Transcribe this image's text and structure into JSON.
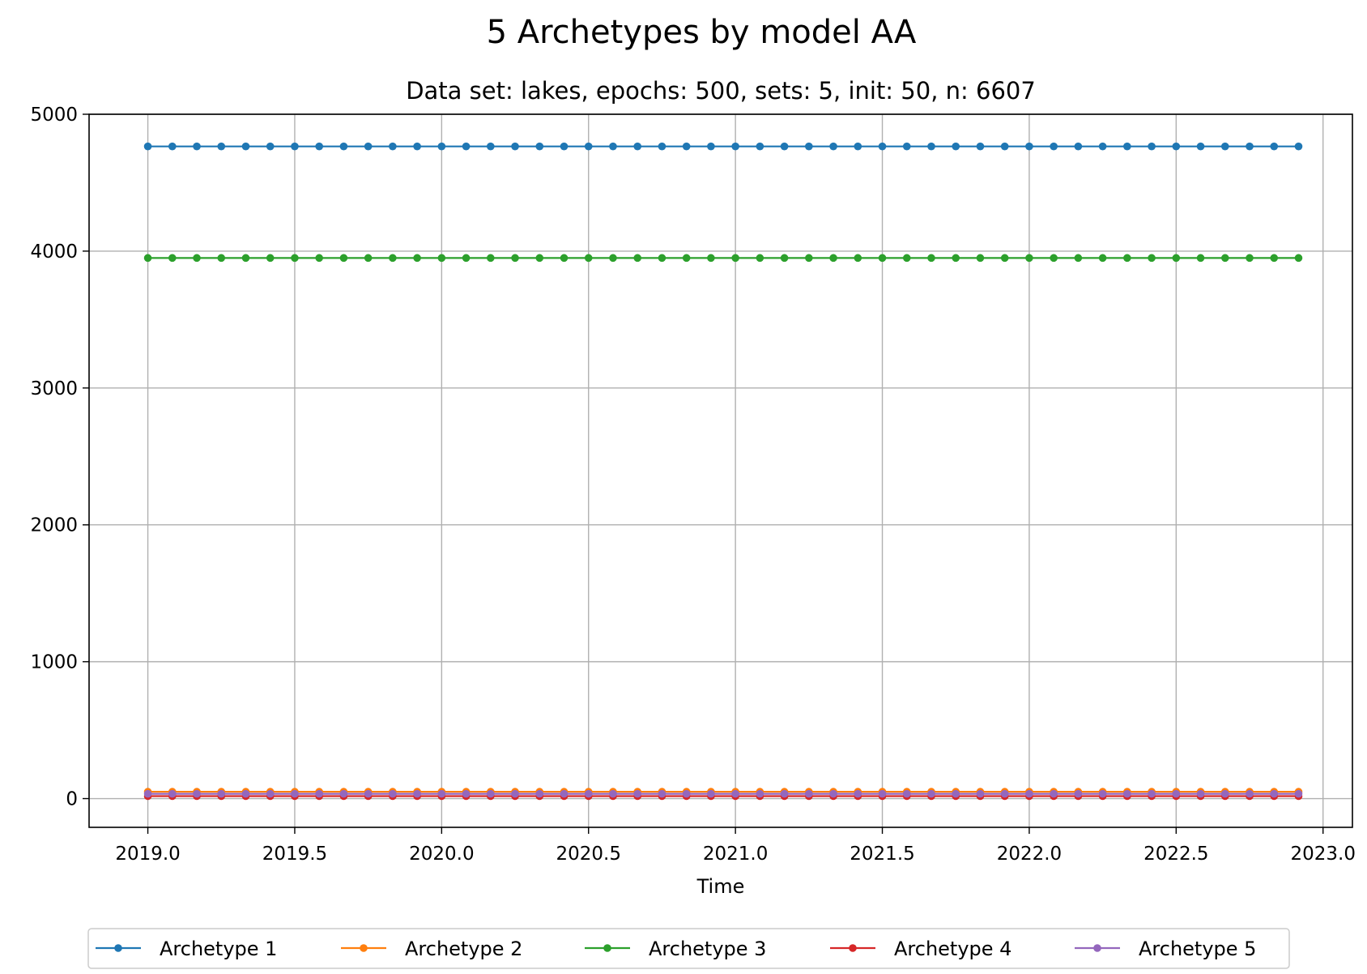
{
  "chart_data": {
    "type": "line",
    "title": "5 Archetypes by model AA",
    "subtitle": "Data set: lakes, epochs: 500, sets: 5, init: 50, n: 6607",
    "xlabel": "Time",
    "ylabel": "",
    "xlim": [
      2018.8,
      2023.1
    ],
    "ylim": [
      -210,
      5000
    ],
    "x_ticks": [
      2019.0,
      2019.5,
      2020.0,
      2020.5,
      2021.0,
      2021.5,
      2022.0,
      2022.5,
      2023.0
    ],
    "x_tick_labels": [
      "2019.0",
      "2019.5",
      "2020.0",
      "2020.5",
      "2021.0",
      "2021.5",
      "2022.0",
      "2022.5",
      "2023.0"
    ],
    "y_ticks": [
      0,
      1000,
      2000,
      3000,
      4000,
      5000
    ],
    "y_tick_labels": [
      "0",
      "1000",
      "2000",
      "3000",
      "4000",
      "5000"
    ],
    "grid": true,
    "legend_position": "bottom-center",
    "x": {
      "start": 2019.0,
      "step": 0.0833333,
      "count": 48
    },
    "series": [
      {
        "name": "Archetype 1",
        "color": "#1f77b4",
        "value": 4765
      },
      {
        "name": "Archetype 2",
        "color": "#ff7f0e",
        "value": 50
      },
      {
        "name": "Archetype 3",
        "color": "#2ca02c",
        "value": 3950
      },
      {
        "name": "Archetype 4",
        "color": "#d62728",
        "value": 18
      },
      {
        "name": "Archetype 5",
        "color": "#9467bd",
        "value": 35
      }
    ]
  }
}
